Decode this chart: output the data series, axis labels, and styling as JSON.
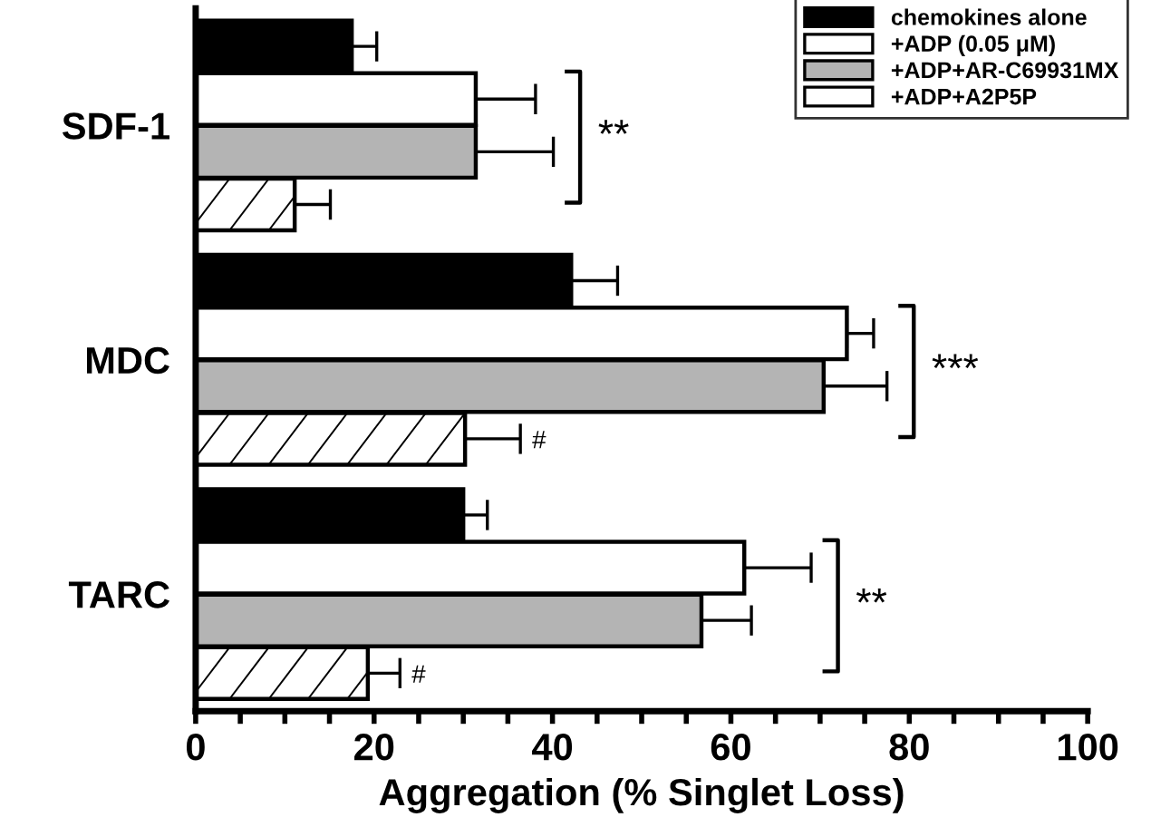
{
  "chart_data": {
    "type": "bar",
    "orientation": "horizontal",
    "xlabel": "Aggregation (% Singlet Loss)",
    "categories": [
      "SDF-1",
      "MDC",
      "TARC"
    ],
    "series": [
      {
        "name": "chemokines alone",
        "color": "#000000",
        "values": [
          17.5,
          42.1,
          30.0
        ],
        "errors": [
          [
            17.5,
            20.3
          ],
          [
            42.1,
            47.3
          ],
          [
            30.0,
            32.7
          ]
        ]
      },
      {
        "name": "+ADP (0.05 μM)",
        "color": "#ffffff",
        "values": [
          31.4,
          73.0,
          61.5
        ],
        "errors": [
          [
            31.4,
            38.1
          ],
          [
            73.0,
            76.0
          ],
          [
            61.5,
            69.0
          ]
        ]
      },
      {
        "name": "+ADP+AR-C69931MX",
        "color": "#b4b4b4",
        "values": [
          31.4,
          70.4,
          56.7
        ],
        "errors": [
          [
            31.4,
            40.1
          ],
          [
            70.4,
            77.5
          ],
          [
            56.7,
            62.3
          ]
        ]
      },
      {
        "name": "+ADP+A2P5P",
        "color": "#ffffff",
        "values": [
          11.1,
          30.2,
          19.3
        ],
        "errors": [
          [
            11.1,
            15.1
          ],
          [
            30.2,
            36.4
          ],
          [
            19.3,
            22.9
          ]
        ]
      }
    ],
    "xlim": [
      0,
      100
    ],
    "xticks": [
      0,
      {
        "value": 5,
        "label": null
      },
      {
        "value": 10,
        "label": null
      },
      {
        "value": 15,
        "label": null
      },
      20,
      {
        "value": 25,
        "label": null
      },
      {
        "value": 30,
        "label": null
      },
      {
        "value": 35,
        "label": null
      },
      40,
      {
        "value": 45,
        "label": null
      },
      {
        "value": 50,
        "label": null
      },
      {
        "value": 55,
        "label": null
      },
      60,
      {
        "value": 65,
        "label": null
      },
      {
        "value": 70,
        "label": null
      },
      {
        "value": 75,
        "label": null
      },
      80,
      {
        "value": 85,
        "label": null
      },
      {
        "value": 90,
        "label": null
      },
      {
        "value": 95,
        "label": null
      },
      100
    ],
    "annotations": [
      "**",
      "***",
      {
        "text": "#",
        "x": 38.5,
        "y": "MDC"
      },
      "**",
      {
        "text": "#",
        "x": 25,
        "y": "TARC"
      }
    ],
    "legend": "top right",
    "grid": false
  }
}
